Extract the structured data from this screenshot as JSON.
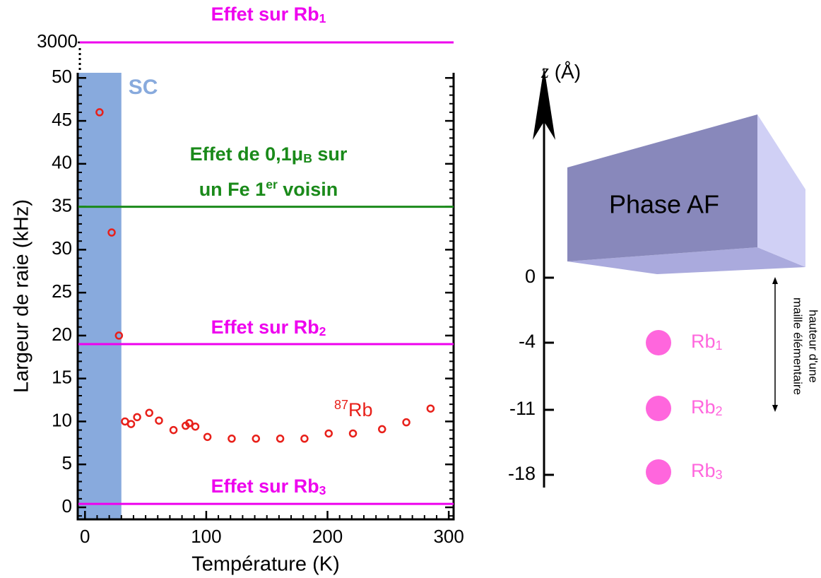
{
  "chart_data": {
    "type": "scatter",
    "x_label": "Température (K)",
    "y_label": "Largeur de raie (kHz)",
    "xlim": [
      -6,
      304
    ],
    "ylim": [
      -1.4,
      50.6
    ],
    "xticks": [
      0,
      100,
      200,
      300
    ],
    "yticks": [
      0,
      5,
      10,
      15,
      20,
      25,
      30,
      35,
      40,
      45,
      50
    ],
    "x_minor_step": 10,
    "y_minor_step": 1,
    "broken_axis_tick": 3000,
    "band": {
      "label": "SC",
      "x": [
        -6,
        30
      ],
      "color": "#88aadd"
    },
    "series": [
      {
        "name": "Rb",
        "name_sup": "87",
        "color": "#e8201a",
        "x": [
          12,
          22,
          28,
          33,
          38,
          43,
          53,
          61,
          73,
          83,
          86,
          91,
          101,
          121,
          141,
          161,
          181,
          201,
          221,
          245,
          265,
          285
        ],
        "values": [
          46,
          32,
          20,
          10,
          9.7,
          10.5,
          11,
          10.1,
          9,
          9.5,
          9.8,
          9.4,
          8.2,
          8,
          8,
          8,
          8,
          8.6,
          8.6,
          9.1,
          9.9,
          11.5
        ]
      }
    ],
    "hlines": [
      {
        "value": 3000,
        "color": "#ee00ee",
        "label_lines": [
          [
            {
              "text": "Effet sur Rb",
              "style": "normal"
            },
            {
              "text": "1",
              "style": "sub"
            }
          ]
        ]
      },
      {
        "value": 35,
        "color": "#1a8a1a",
        "label_lines": [
          [
            {
              "text": "Effet de 0,1μ",
              "style": "normal"
            },
            {
              "text": "B",
              "style": "sub"
            },
            {
              "text": " sur",
              "style": "normal"
            }
          ],
          [
            {
              "text": "un Fe 1",
              "style": "normal"
            },
            {
              "text": "er",
              "style": "sup"
            },
            {
              "text": " voisin",
              "style": "normal"
            }
          ]
        ]
      },
      {
        "value": 19,
        "color": "#ee00ee",
        "label_lines": [
          [
            {
              "text": "Effet sur Rb",
              "style": "normal"
            },
            {
              "text": "2",
              "style": "sub"
            }
          ]
        ]
      },
      {
        "value": 0.4,
        "color": "#ee00ee",
        "label_lines": [
          [
            {
              "text": "Effet sur Rb",
              "style": "normal"
            },
            {
              "text": "3",
              "style": "sub"
            }
          ]
        ]
      }
    ]
  },
  "diagram": {
    "axis_var": "z",
    "axis_unit": "(Å)",
    "ticks": [
      "0",
      "-4",
      "-11",
      "-18"
    ],
    "box_label": "Phase AF",
    "atoms": [
      {
        "name": "Rb",
        "sub": "1"
      },
      {
        "name": "Rb",
        "sub": "2"
      },
      {
        "name": "Rb",
        "sub": "3"
      }
    ],
    "atom_color": "#ff66dd",
    "height_note": [
      "hauteur d'une",
      "maille élémentaire"
    ]
  }
}
